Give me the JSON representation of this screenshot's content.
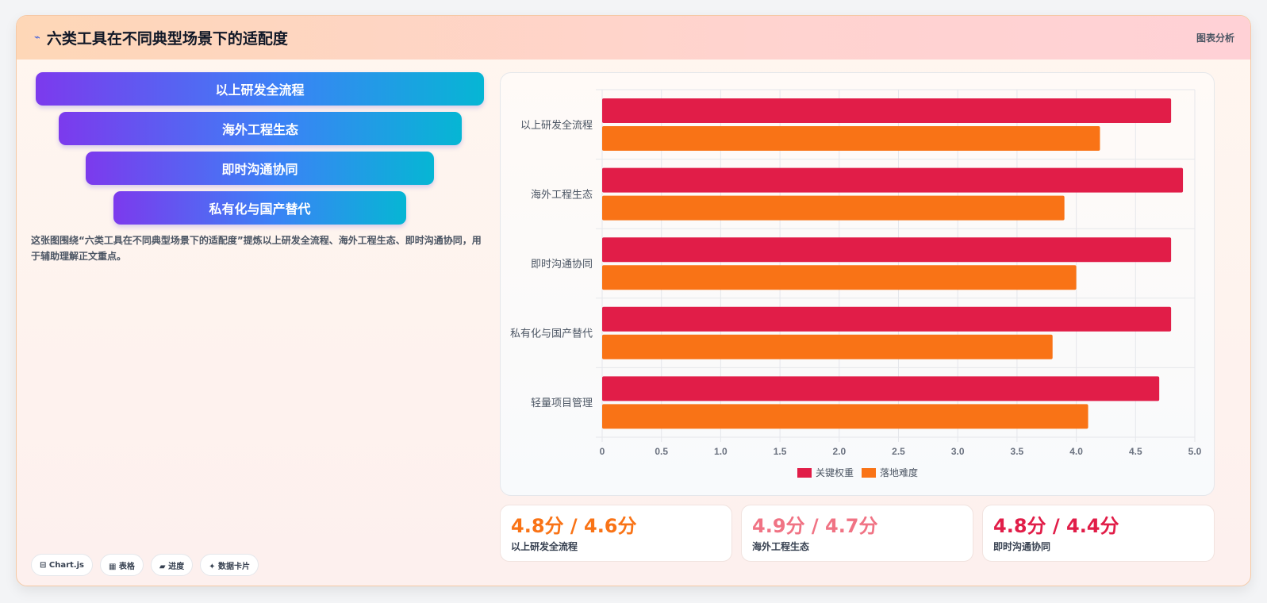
{
  "header": {
    "title": "六类工具在不同典型场景下的适配度",
    "link": "图表分析",
    "icon": "spark-icon"
  },
  "funnel": [
    "以上研发全流程",
    "海外工程生态",
    "即时沟通协同",
    "私有化与国产替代"
  ],
  "description": "这张图围绕“六类工具在不同典型场景下的适配度”提炼以上研发全流程、海外工程生态、即时沟通协同，用于辅助理解正文重点。",
  "chips": [
    "⊟ Chart.js",
    "▦ 表格",
    "▰ 进度",
    "✦ 数据卡片"
  ],
  "stats": [
    {
      "value": "4.8分 / 4.6分",
      "label": "以上研发全流程",
      "color": "#f97316"
    },
    {
      "value": "4.9分 / 4.7分",
      "label": "海外工程生态",
      "color": "#f07384"
    },
    {
      "value": "4.8分 / 4.4分",
      "label": "即时沟通协同",
      "color": "#e11d48"
    }
  ],
  "chart_data": {
    "type": "bar",
    "orientation": "horizontal",
    "categories": [
      "以上研发全流程",
      "海外工程生态",
      "即时沟通协同",
      "私有化与国产替代",
      "轻量项目管理"
    ],
    "series": [
      {
        "name": "关键权重",
        "color": "#e11d48",
        "values": [
          4.8,
          4.9,
          4.8,
          4.8,
          4.7
        ]
      },
      {
        "name": "落地难度",
        "color": "#f97316",
        "values": [
          4.2,
          3.9,
          4.0,
          3.8,
          4.1
        ]
      }
    ],
    "xlim": [
      0,
      5
    ],
    "xticks": [
      "0",
      "0.5",
      "1.0",
      "1.5",
      "2.0",
      "2.5",
      "3.0",
      "3.5",
      "4.0",
      "4.5",
      "5.0"
    ],
    "grid": true,
    "legend": "bottom-center"
  }
}
